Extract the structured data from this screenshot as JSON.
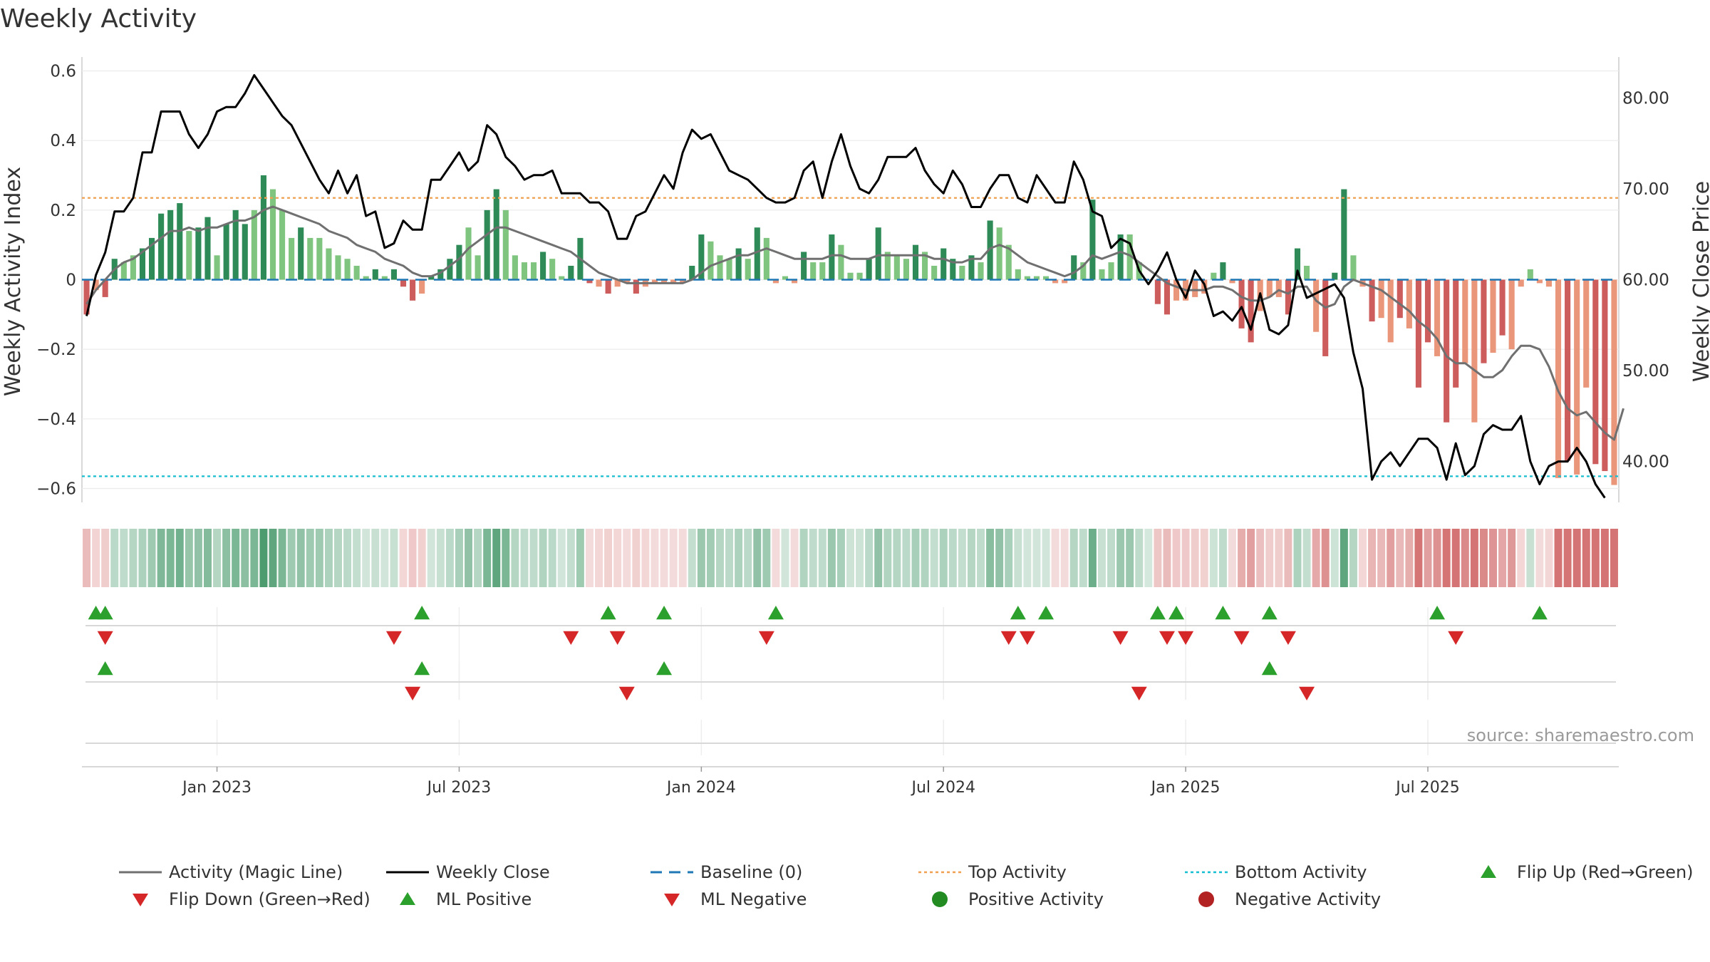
{
  "chart_data": {
    "type": "bar+line",
    "title": "Weekly Activity",
    "ylabel_left": "Weekly Activity Index",
    "ylabel_right": "Weekly Close Price",
    "source": "source: sharemaestro.com",
    "ylim_left": [
      -0.64,
      0.64
    ],
    "ylim_right": [
      35.5,
      84.5
    ],
    "yticks_left": [
      {
        "value": 0.6,
        "label": "0.6"
      },
      {
        "value": 0.4,
        "label": "0.4"
      },
      {
        "value": 0.2,
        "label": "0.2"
      },
      {
        "value": 0,
        "label": "0"
      },
      {
        "value": -0.2,
        "label": "−0.2"
      },
      {
        "value": -0.4,
        "label": "−0.4"
      },
      {
        "value": -0.6,
        "label": "−0.6"
      }
    ],
    "yticks_right": [
      {
        "value": 80,
        "label": "80.00"
      },
      {
        "value": 70,
        "label": "70.00"
      },
      {
        "value": 60,
        "label": "60.00"
      },
      {
        "value": 50,
        "label": "50.00"
      },
      {
        "value": 40,
        "label": "40.00"
      }
    ],
    "xticks": [
      {
        "week": 14,
        "label": "Jan 2023"
      },
      {
        "week": 40,
        "label": "Jul 2023"
      },
      {
        "week": 66,
        "label": "Jan 2024"
      },
      {
        "week": 92,
        "label": "Jul 2024"
      },
      {
        "week": 118,
        "label": "Jan 2025"
      },
      {
        "week": 144,
        "label": "Jul 2025"
      }
    ],
    "top_activity": 0.235,
    "bottom_activity": -0.565,
    "colors": {
      "positive_strong": "#2e8b57",
      "positive_light": "#7fc47f",
      "negative_strong": "#cd5c5c",
      "negative_light": "#e9967a",
      "close_line": "#000000",
      "magic_line": "#707070",
      "baseline": "#1f77b4",
      "top": "#f0a050",
      "bottom": "#17becf",
      "flip_up": "#2ca02c",
      "flip_down": "#d62728",
      "pos_dot": "#228b22",
      "neg_dot": "#b22222"
    },
    "activity": [
      -0.1,
      -0.03,
      -0.05,
      0.06,
      0.05,
      0.07,
      0.09,
      0.12,
      0.19,
      0.2,
      0.22,
      0.14,
      0.15,
      0.18,
      0.07,
      0.16,
      0.2,
      0.16,
      0.2,
      0.3,
      0.26,
      0.2,
      0.12,
      0.15,
      0.12,
      0.12,
      0.09,
      0.07,
      0.06,
      0.04,
      0.01,
      0.03,
      0.01,
      0.03,
      -0.02,
      -0.06,
      -0.04,
      0.01,
      0.03,
      0.06,
      0.1,
      0.15,
      0.07,
      0.2,
      0.26,
      0.2,
      0.07,
      0.05,
      0.05,
      0.08,
      0.06,
      0.01,
      0.04,
      0.12,
      -0.01,
      -0.02,
      -0.04,
      -0.02,
      -0.01,
      -0.04,
      -0.02,
      -0.01,
      -0.01,
      -0.01,
      -0.01,
      0.04,
      0.13,
      0.11,
      0.07,
      0.06,
      0.09,
      0.06,
      0.15,
      0.12,
      -0.01,
      0.01,
      -0.01,
      0.08,
      0.05,
      0.05,
      0.13,
      0.1,
      0.02,
      0.02,
      0.06,
      0.15,
      0.08,
      0.07,
      0.06,
      0.1,
      0.08,
      0.04,
      0.09,
      0.06,
      0.04,
      0.07,
      0.05,
      0.17,
      0.15,
      0.1,
      0.03,
      0.01,
      0.01,
      0.01,
      -0.01,
      -0.01,
      0.07,
      0.05,
      0.23,
      0.03,
      0.05,
      0.13,
      0.13,
      0.05,
      0.0,
      -0.07,
      -0.1,
      -0.06,
      -0.06,
      -0.05,
      -0.04,
      0.02,
      0.05,
      -0.01,
      -0.14,
      -0.18,
      -0.09,
      -0.05,
      -0.05,
      -0.1,
      0.09,
      0.04,
      -0.15,
      -0.22,
      0.02,
      0.26,
      0.07,
      -0.02,
      -0.12,
      -0.11,
      -0.18,
      -0.11,
      -0.14,
      -0.31,
      -0.18,
      -0.22,
      -0.41,
      -0.31,
      -0.24,
      -0.41,
      -0.24,
      -0.21,
      -0.16,
      -0.2,
      -0.02,
      0.03,
      -0.01,
      -0.02,
      -0.57,
      -0.52,
      -0.56,
      -0.31,
      -0.53,
      -0.55,
      -0.59
    ],
    "bar_shade": [
      0,
      1,
      0,
      0,
      1,
      1,
      0,
      0,
      0,
      0,
      0,
      1,
      0,
      0,
      1,
      0,
      0,
      0,
      1,
      0,
      1,
      1,
      1,
      0,
      1,
      1,
      1,
      1,
      1,
      1,
      1,
      0,
      1,
      0,
      0,
      0,
      1,
      0,
      0,
      0,
      0,
      1,
      1,
      0,
      0,
      1,
      1,
      1,
      1,
      0,
      1,
      1,
      0,
      0,
      0,
      1,
      0,
      1,
      1,
      0,
      1,
      1,
      1,
      1,
      1,
      0,
      0,
      1,
      1,
      1,
      0,
      1,
      0,
      1,
      1,
      1,
      1,
      0,
      1,
      1,
      0,
      1,
      1,
      1,
      0,
      0,
      1,
      1,
      1,
      0,
      1,
      1,
      0,
      0,
      1,
      0,
      1,
      0,
      1,
      1,
      1,
      1,
      1,
      1,
      1,
      1,
      0,
      1,
      0,
      1,
      1,
      0,
      1,
      1,
      1,
      0,
      0,
      1,
      1,
      1,
      1,
      1,
      0,
      1,
      0,
      0,
      1,
      1,
      1,
      0,
      0,
      1,
      1,
      0,
      0,
      0,
      1,
      1,
      0,
      1,
      1,
      0,
      1,
      0,
      0,
      1,
      0,
      0,
      1,
      1,
      0,
      1,
      0,
      1,
      1,
      1,
      1,
      1,
      1,
      0,
      1,
      1,
      0,
      0,
      1,
      1,
      1,
      1,
      0,
      0,
      0
    ],
    "close": [
      56,
      60.5,
      63,
      67.5,
      67.5,
      69,
      74,
      74,
      78.5,
      78.5,
      78.5,
      76,
      74.5,
      76,
      78.5,
      79,
      79,
      80.5,
      82.5,
      81,
      79.5,
      78,
      77,
      75,
      73,
      71,
      69.5,
      72,
      69.5,
      71.5,
      67,
      67.5,
      63.5,
      64,
      66.5,
      65.5,
      65.5,
      71,
      71,
      72.5,
      74,
      72,
      73,
      77,
      76,
      73.5,
      72.5,
      71,
      71.5,
      71.5,
      72,
      69.5,
      69.5,
      69.5,
      68.5,
      68.5,
      67.5,
      64.5,
      64.5,
      67,
      67.5,
      69.5,
      71.5,
      70,
      74,
      76.5,
      75.5,
      76,
      74,
      72,
      71.5,
      71,
      70,
      69,
      68.5,
      68.5,
      69,
      72,
      73,
      69,
      73,
      76,
      72.5,
      70,
      69.5,
      71,
      73.5,
      73.5,
      73.5,
      74.5,
      72,
      70.5,
      69.5,
      72,
      70.5,
      68,
      68,
      70,
      71.5,
      71.5,
      69,
      68.5,
      71.5,
      70,
      68.5,
      68.5,
      73,
      71,
      67.5,
      67,
      63.5,
      64.5,
      64,
      61,
      59.5,
      61,
      63,
      60,
      58,
      61,
      59.5,
      56,
      56.5,
      55.5,
      57,
      54.5,
      58.5,
      54.5,
      54,
      55,
      61,
      58,
      58.5,
      59,
      59.5,
      58,
      52,
      48,
      38,
      40,
      41,
      39.5,
      41,
      42.5,
      42.5,
      41.5,
      38,
      42,
      38.5,
      39.5,
      43,
      44,
      43.5,
      43.5,
      45,
      40,
      37.5,
      39.5,
      40,
      40,
      41.5,
      40,
      37.5,
      36
    ],
    "magic": [
      -0.07,
      -0.03,
      0.0,
      0.03,
      0.05,
      0.06,
      0.08,
      0.1,
      0.12,
      0.14,
      0.14,
      0.15,
      0.14,
      0.15,
      0.15,
      0.16,
      0.17,
      0.17,
      0.18,
      0.2,
      0.21,
      0.2,
      0.19,
      0.18,
      0.17,
      0.16,
      0.14,
      0.13,
      0.12,
      0.1,
      0.09,
      0.08,
      0.06,
      0.05,
      0.04,
      0.02,
      0.01,
      0.01,
      0.02,
      0.04,
      0.06,
      0.09,
      0.11,
      0.13,
      0.15,
      0.15,
      0.14,
      0.13,
      0.12,
      0.11,
      0.1,
      0.09,
      0.08,
      0.06,
      0.04,
      0.02,
      0.01,
      0.0,
      -0.01,
      -0.01,
      -0.01,
      -0.01,
      -0.01,
      -0.01,
      -0.01,
      0.0,
      0.02,
      0.04,
      0.05,
      0.06,
      0.07,
      0.07,
      0.08,
      0.09,
      0.08,
      0.07,
      0.06,
      0.06,
      0.06,
      0.06,
      0.07,
      0.07,
      0.06,
      0.06,
      0.06,
      0.07,
      0.07,
      0.07,
      0.07,
      0.07,
      0.07,
      0.06,
      0.06,
      0.05,
      0.05,
      0.06,
      0.06,
      0.09,
      0.1,
      0.09,
      0.07,
      0.05,
      0.04,
      0.03,
      0.02,
      0.01,
      0.02,
      0.04,
      0.07,
      0.06,
      0.07,
      0.08,
      0.07,
      0.05,
      0.03,
      0.01,
      -0.01,
      -0.02,
      -0.03,
      -0.03,
      -0.03,
      -0.02,
      -0.02,
      -0.03,
      -0.05,
      -0.06,
      -0.06,
      -0.05,
      -0.03,
      -0.04,
      -0.02,
      -0.02,
      -0.06,
      -0.08,
      -0.07,
      -0.02,
      0.0,
      -0.01,
      -0.02,
      -0.03,
      -0.05,
      -0.07,
      -0.09,
      -0.12,
      -0.14,
      -0.17,
      -0.22,
      -0.24,
      -0.24,
      -0.26,
      -0.28,
      -0.28,
      -0.26,
      -0.22,
      -0.19,
      -0.19,
      -0.2,
      -0.25,
      -0.32,
      -0.37,
      -0.39,
      -0.38,
      -0.41,
      -0.44,
      -0.46,
      -0.37
    ],
    "panel_top_up": [
      1,
      2,
      36,
      56,
      62,
      74,
      100,
      103,
      115,
      117,
      122,
      127,
      145,
      156
    ],
    "panel_top_down": [
      2,
      33,
      52,
      57,
      73,
      99,
      101,
      111,
      116,
      118,
      124,
      129,
      147
    ],
    "panel_mid_up": [
      2,
      36,
      62,
      127
    ],
    "panel_mid_down": [
      35,
      58,
      113,
      131
    ],
    "legend": [
      {
        "label": "Activity (Magic Line)",
        "marker": "line",
        "color": "#707070"
      },
      {
        "label": "Weekly Close",
        "marker": "line",
        "color": "#000000"
      },
      {
        "label": "Baseline (0)",
        "marker": "dash",
        "color": "#1f77b4"
      },
      {
        "label": "Top Activity",
        "marker": "dot-line",
        "color": "#f0a050"
      },
      {
        "label": "Bottom Activity",
        "marker": "dot-line",
        "color": "#17becf"
      },
      {
        "label": "Flip Up (Red→Green)",
        "marker": "tri-up",
        "color": "#2ca02c"
      },
      {
        "label": "Flip Down (Green→Red)",
        "marker": "tri-down",
        "color": "#d62728"
      },
      {
        "label": "ML Positive",
        "marker": "tri-up",
        "color": "#2ca02c"
      },
      {
        "label": "ML Negative",
        "marker": "tri-down",
        "color": "#d62728"
      },
      {
        "label": "Positive Activity",
        "marker": "dot",
        "color": "#228b22"
      },
      {
        "label": "Negative Activity",
        "marker": "dot",
        "color": "#b22222"
      }
    ]
  }
}
